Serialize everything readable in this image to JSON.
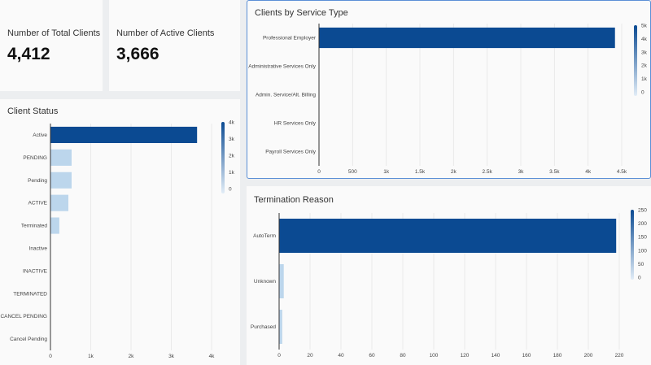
{
  "kpis": [
    {
      "label": "Number of Total Clients",
      "value": "4,412"
    },
    {
      "label": "Number of Active Clients",
      "value": "3,666"
    }
  ],
  "colors": {
    "dark": "#0b4a92",
    "light": "#bcd6ec",
    "border": "#5b8fd6"
  },
  "chart_data": [
    {
      "id": "status",
      "type": "bar",
      "orientation": "horizontal",
      "title": "Client Status",
      "categories": [
        "Active",
        "PENDING",
        "Pending",
        "ACTIVE",
        "Terminated",
        "Inactive",
        "INACTIVE",
        "TERMINATED",
        "CANCEL PENDING",
        "Cancel Pending"
      ],
      "values": [
        3640,
        525,
        525,
        445,
        220,
        0,
        0,
        0,
        0,
        0
      ],
      "xlim": [
        0,
        4000
      ],
      "xticks": [
        0,
        1000,
        2000,
        3000,
        4000
      ],
      "xtick_labels": [
        "0",
        "1k",
        "2k",
        "3k",
        "4k"
      ],
      "legend": {
        "type": "color-scale",
        "placement": "top-right",
        "labels": [
          "4k",
          "3k",
          "2k",
          "1k",
          "0"
        ]
      }
    },
    {
      "id": "service",
      "type": "bar",
      "orientation": "horizontal",
      "title": "Clients by Service Type",
      "categories": [
        "Professional Employer",
        "Administrative Services Only",
        "Admin. Service/Alt. Billing",
        "HR Services Only",
        "Payroll Services Only"
      ],
      "values": [
        4400,
        0,
        0,
        0,
        0
      ],
      "xlim": [
        0,
        4500
      ],
      "xticks": [
        0,
        500,
        1000,
        1500,
        2000,
        2500,
        3000,
        3500,
        4000,
        4500
      ],
      "xtick_labels": [
        "0",
        "500",
        "1k",
        "1.5k",
        "2k",
        "2.5k",
        "3k",
        "3.5k",
        "4k",
        "4.5k"
      ],
      "legend": {
        "type": "color-scale",
        "placement": "top-right",
        "labels": [
          "5k",
          "4k",
          "3k",
          "2k",
          "1k",
          "0"
        ]
      }
    },
    {
      "id": "term",
      "type": "bar",
      "orientation": "horizontal",
      "title": "Termination Reason",
      "categories": [
        "AutoTerm",
        "Unknown",
        "Purchased"
      ],
      "values": [
        218,
        3,
        2
      ],
      "xlim": [
        0,
        220
      ],
      "xticks": [
        0,
        20,
        40,
        60,
        80,
        100,
        120,
        140,
        160,
        180,
        200,
        220
      ],
      "xtick_labels": [
        "0",
        "20",
        "40",
        "60",
        "80",
        "100",
        "120",
        "140",
        "160",
        "180",
        "200",
        "220"
      ],
      "legend": {
        "type": "color-scale",
        "placement": "top-right",
        "labels": [
          "250",
          "200",
          "150",
          "100",
          "50",
          "0"
        ]
      }
    }
  ]
}
